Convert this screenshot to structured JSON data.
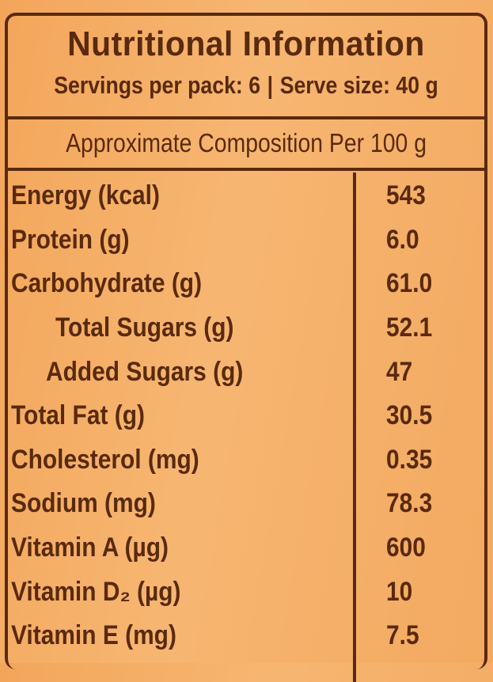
{
  "header": {
    "title": "Nutritional Information",
    "servings_per_pack": "Servings per pack: 6",
    "separator": "|",
    "serve_size": "Serve size: 40 g"
  },
  "composition_label": "Approximate Composition Per 100 g",
  "nutrients": [
    {
      "label": "Energy (kcal)",
      "value": "543"
    },
    {
      "label": "Protein (g)",
      "value": "6.0"
    },
    {
      "label": "Carbohydrate (g)",
      "value": "61.0"
    },
    {
      "label": "Total Sugars (g)",
      "value": "52.1"
    },
    {
      "label": "Added Sugars (g)",
      "value": "47"
    },
    {
      "label": "Total Fat (g)",
      "value": "30.5"
    },
    {
      "label": "Cholesterol (mg)",
      "value": "0.35"
    },
    {
      "label": "Sodium (mg)",
      "value": "78.3"
    },
    {
      "label": "Vitamin A (µg)",
      "value": "600"
    },
    {
      "label": "Vitamin D₂ (µg)",
      "value": "10"
    },
    {
      "label": "Vitamin E (mg)",
      "value": "7.5"
    }
  ]
}
